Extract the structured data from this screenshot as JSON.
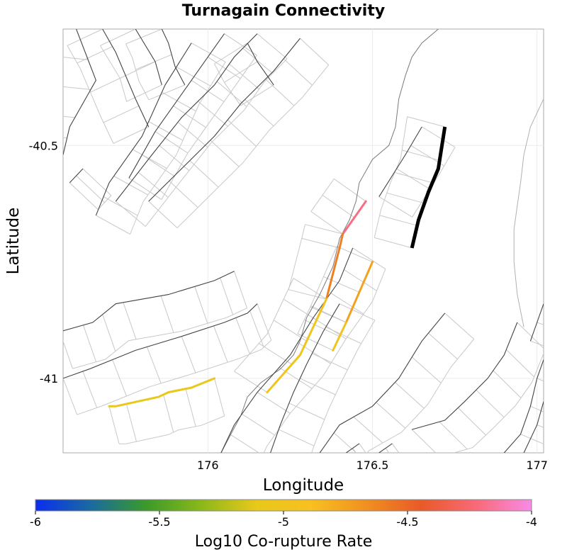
{
  "chart_data": {
    "type": "map",
    "title": "Turnagain Connectivity",
    "xlabel": "Longitude",
    "ylabel": "Latitude",
    "xlim": [
      175.56,
      177.02
    ],
    "ylim": [
      -41.16,
      -40.25
    ],
    "x_ticks": [
      {
        "value": 176,
        "label": "176"
      },
      {
        "value": 176.5,
        "label": "176.5"
      },
      {
        "value": 177,
        "label": "177"
      }
    ],
    "y_ticks": [
      {
        "value": -40.5,
        "label": "-40.5"
      },
      {
        "value": -41,
        "label": "-41"
      }
    ],
    "colorbar": {
      "label": "Log10 Co-rupture Rate",
      "min": -6,
      "max": -4,
      "ticks": [
        {
          "value": -6,
          "label": "-6"
        },
        {
          "value": -5.5,
          "label": "-5.5"
        },
        {
          "value": -5,
          "label": "-5"
        },
        {
          "value": -4.5,
          "label": "-4.5"
        },
        {
          "value": -4,
          "label": "-4"
        }
      ],
      "stops": [
        "#0a2ef0",
        "#1a6aa0",
        "#3a9a2a",
        "#8ab81a",
        "#e8c81a",
        "#f8c020",
        "#f09020",
        "#e85a28",
        "#f86a78",
        "#f88ae8"
      ]
    },
    "source_fault": {
      "name": "Turnagain",
      "color": "#000000",
      "trace": [
        [
          176.72,
          -40.46
        ],
        [
          176.7,
          -40.55
        ],
        [
          176.67,
          -40.6
        ],
        [
          176.64,
          -40.66
        ],
        [
          176.62,
          -40.72
        ]
      ]
    },
    "corupture_segments": [
      {
        "log10_rate": -4.2,
        "trace": [
          [
            176.48,
            -40.62
          ],
          [
            176.41,
            -40.69
          ]
        ]
      },
      {
        "log10_rate": -4.6,
        "trace": [
          [
            176.41,
            -40.69
          ],
          [
            176.4,
            -40.72
          ],
          [
            176.36,
            -40.83
          ]
        ]
      },
      {
        "log10_rate": -4.75,
        "trace": [
          [
            176.5,
            -40.75
          ],
          [
            176.42,
            -40.88
          ]
        ]
      },
      {
        "log10_rate": -5.0,
        "trace": [
          [
            176.42,
            -40.88
          ],
          [
            176.38,
            -40.94
          ]
        ]
      },
      {
        "log10_rate": -5.0,
        "trace": [
          [
            176.36,
            -40.83
          ],
          [
            176.32,
            -40.89
          ],
          [
            176.28,
            -40.95
          ],
          [
            176.18,
            -41.03
          ]
        ]
      },
      {
        "log10_rate": -5.1,
        "trace": [
          [
            175.7,
            -41.06
          ],
          [
            175.72,
            -41.06
          ],
          [
            175.85,
            -41.04
          ],
          [
            175.88,
            -41.03
          ],
          [
            175.95,
            -41.02
          ],
          [
            176.02,
            -41.0
          ]
        ]
      }
    ],
    "active_faults": [
      [
        [
          175.6,
          -40.25
        ],
        [
          175.66,
          -40.36
        ],
        [
          175.58,
          -40.46
        ],
        [
          175.56,
          -40.52
        ]
      ],
      [
        [
          175.68,
          -40.25
        ],
        [
          175.72,
          -40.3
        ],
        [
          175.78,
          -40.4
        ],
        [
          175.82,
          -40.46
        ]
      ],
      [
        [
          175.78,
          -40.25
        ],
        [
          175.84,
          -40.32
        ],
        [
          175.86,
          -40.37
        ]
      ],
      [
        [
          175.86,
          -40.25
        ],
        [
          175.88,
          -40.28
        ],
        [
          175.9,
          -40.33
        ],
        [
          175.93,
          -40.37
        ]
      ],
      [
        [
          176.12,
          -40.28
        ],
        [
          176.15,
          -40.32
        ],
        [
          176.2,
          -40.37
        ]
      ],
      [
        [
          175.66,
          -40.65
        ],
        [
          175.7,
          -40.58
        ],
        [
          175.8,
          -40.48
        ],
        [
          175.87,
          -40.37
        ],
        [
          175.95,
          -40.28
        ]
      ],
      [
        [
          175.76,
          -40.57
        ],
        [
          175.84,
          -40.47
        ],
        [
          175.95,
          -40.36
        ],
        [
          176.05,
          -40.26
        ]
      ],
      [
        [
          175.55,
          -40.9
        ],
        [
          175.65,
          -40.88
        ],
        [
          175.72,
          -40.84
        ],
        [
          175.88,
          -40.82
        ],
        [
          176.02,
          -40.79
        ],
        [
          176.08,
          -40.77
        ]
      ],
      [
        [
          175.56,
          -41.0
        ],
        [
          175.64,
          -40.98
        ],
        [
          175.78,
          -40.94
        ],
        [
          175.92,
          -40.91
        ],
        [
          176.05,
          -40.88
        ],
        [
          176.12,
          -40.86
        ],
        [
          176.15,
          -40.84
        ]
      ],
      [
        [
          175.72,
          -40.62
        ],
        [
          175.83,
          -40.52
        ],
        [
          175.92,
          -40.44
        ],
        [
          176.02,
          -40.37
        ],
        [
          176.08,
          -40.31
        ],
        [
          176.15,
          -40.26
        ]
      ],
      [
        [
          175.82,
          -40.62
        ],
        [
          175.92,
          -40.55
        ],
        [
          176.02,
          -40.48
        ],
        [
          176.1,
          -40.41
        ],
        [
          176.2,
          -40.34
        ],
        [
          176.28,
          -40.27
        ]
      ],
      [
        [
          176.52,
          -40.61
        ],
        [
          176.6,
          -40.52
        ],
        [
          176.65,
          -40.46
        ]
      ],
      [
        [
          176.04,
          -41.16
        ],
        [
          176.08,
          -41.1
        ],
        [
          176.15,
          -41.03
        ],
        [
          176.25,
          -40.95
        ],
        [
          176.32,
          -40.87
        ],
        [
          176.4,
          -40.79
        ],
        [
          176.44,
          -40.72
        ]
      ],
      [
        [
          176.19,
          -41.16
        ],
        [
          176.22,
          -41.1
        ],
        [
          176.26,
          -41.03
        ],
        [
          176.3,
          -40.97
        ],
        [
          176.35,
          -40.9
        ],
        [
          176.4,
          -40.84
        ]
      ],
      [
        [
          176.34,
          -41.16
        ],
        [
          176.4,
          -41.1
        ],
        [
          176.5,
          -41.06
        ],
        [
          176.58,
          -41.0
        ],
        [
          176.65,
          -40.92
        ],
        [
          176.72,
          -40.86
        ]
      ],
      [
        [
          176.62,
          -41.11
        ],
        [
          176.72,
          -41.09
        ],
        [
          176.78,
          -41.05
        ],
        [
          176.85,
          -41.0
        ],
        [
          176.9,
          -40.95
        ],
        [
          176.94,
          -40.88
        ]
      ],
      [
        [
          176.9,
          -41.16
        ],
        [
          176.95,
          -41.12
        ],
        [
          176.98,
          -41.06
        ],
        [
          177.0,
          -41.0
        ],
        [
          177.02,
          -40.96
        ]
      ],
      [
        [
          176.96,
          -41.16
        ],
        [
          177.0,
          -41.1
        ],
        [
          177.02,
          -41.05
        ]
      ],
      [
        [
          176.98,
          -40.92
        ],
        [
          177.0,
          -40.88
        ],
        [
          177.02,
          -40.84
        ]
      ],
      [
        [
          176.52,
          -41.16
        ],
        [
          176.56,
          -41.14
        ]
      ],
      [
        [
          176.42,
          -41.16
        ],
        [
          176.46,
          -41.14
        ]
      ],
      [
        [
          175.58,
          -40.58
        ],
        [
          175.62,
          -40.55
        ]
      ]
    ],
    "coastline": [
      [
        176.7,
        -40.25
      ],
      [
        176.65,
        -40.28
      ],
      [
        176.62,
        -40.31
      ],
      [
        176.6,
        -40.35
      ],
      [
        176.58,
        -40.4
      ],
      [
        176.57,
        -40.46
      ],
      [
        176.55,
        -40.5
      ],
      [
        176.5,
        -40.53
      ],
      [
        176.46,
        -40.58
      ],
      [
        176.45,
        -40.62
      ],
      [
        176.43,
        -40.66
      ],
      [
        176.4,
        -40.7
      ],
      [
        176.38,
        -40.76
      ],
      [
        176.34,
        -40.82
      ],
      [
        176.3,
        -40.87
      ],
      [
        176.28,
        -40.92
      ],
      [
        176.26,
        -40.95
      ],
      [
        176.22,
        -40.98
      ],
      [
        176.16,
        -41.01
      ],
      [
        176.12,
        -41.04
      ],
      [
        176.1,
        -41.08
      ],
      [
        176.07,
        -41.12
      ],
      [
        176.04,
        -41.16
      ]
    ],
    "east_coastline": [
      [
        177.02,
        -40.4
      ],
      [
        176.98,
        -40.46
      ],
      [
        176.96,
        -40.52
      ],
      [
        176.95,
        -40.58
      ],
      [
        176.94,
        -40.63
      ],
      [
        176.93,
        -40.68
      ],
      [
        176.93,
        -40.75
      ],
      [
        176.94,
        -40.82
      ],
      [
        176.96,
        -40.89
      ]
    ]
  }
}
